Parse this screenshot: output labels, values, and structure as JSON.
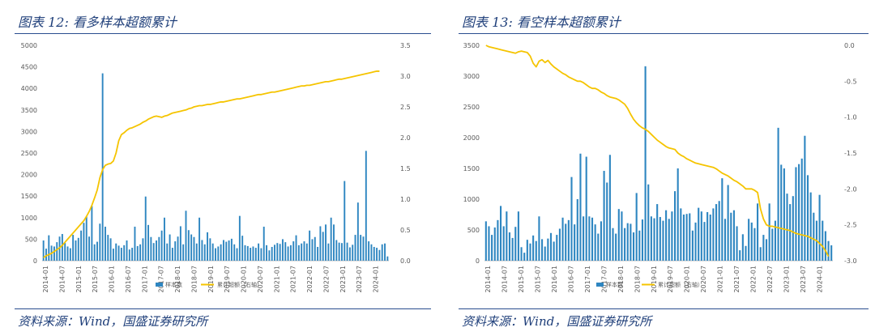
{
  "figures": [
    {
      "title": "图表 12:  看多样本超额累计",
      "source": "资料来源：Wind，国盛证券研究所"
    },
    {
      "title": "图表 13:  看空样本超额累计",
      "source": "资料来源：Wind，国盛证券研究所"
    }
  ],
  "colors": {
    "bar": "#2e86c1",
    "line": "#f5c400",
    "title": "#1f3f7a",
    "rule": "#2a4d8f"
  },
  "chart_data": [
    {
      "type": "bar",
      "title": "",
      "xlabel": "",
      "ylabel": "",
      "x_tick_labels": [
        "2014-01",
        "2014-07",
        "2015-01",
        "2015-07",
        "2016-01",
        "2016-07",
        "2017-01",
        "2017-07",
        "2018-01",
        "2018-07",
        "2019-01",
        "2019-07",
        "2020-01",
        "2020-07",
        "2021-01",
        "2021-07",
        "2022-01",
        "2022-07",
        "2023-01",
        "2023-07",
        "2024-01"
      ],
      "ylim_left": [
        0,
        5000
      ],
      "left_ticks": [
        0,
        500,
        1000,
        1500,
        2000,
        2500,
        3000,
        3500,
        4000,
        4500,
        5000
      ],
      "ylim_right": [
        0.0,
        3.5
      ],
      "right_ticks": [
        "0.0",
        "0.5",
        "1.0",
        "1.5",
        "2.0",
        "2.5",
        "3.0",
        "3.5"
      ],
      "legend_position": "bottom",
      "grid": false,
      "series": [
        {
          "name": "样本数",
          "type": "bar",
          "axis": "left",
          "values": [
            470,
            280,
            590,
            350,
            330,
            430,
            560,
            620,
            410,
            330,
            290,
            600,
            470,
            530,
            700,
            880,
            1030,
            560,
            1270,
            380,
            440,
            860,
            4350,
            790,
            600,
            520,
            280,
            400,
            350,
            300,
            360,
            470,
            260,
            300,
            790,
            340,
            380,
            520,
            1490,
            830,
            550,
            410,
            470,
            550,
            700,
            1000,
            400,
            610,
            300,
            450,
            560,
            800,
            380,
            1160,
            710,
            610,
            550,
            400,
            1000,
            480,
            380,
            660,
            520,
            400,
            290,
            330,
            380,
            480,
            440,
            470,
            510,
            380,
            290,
            1040,
            580,
            360,
            340,
            300,
            330,
            300,
            400,
            290,
            790,
            360,
            240,
            320,
            370,
            410,
            390,
            500,
            430,
            330,
            360,
            450,
            590,
            360,
            400,
            450,
            400,
            700,
            500,
            550,
            320,
            800,
            670,
            840,
            400,
            1000,
            840,
            480,
            420,
            410,
            1850,
            420,
            310,
            370,
            600,
            1350,
            600,
            560,
            2550,
            450,
            380,
            320,
            300,
            250,
            380,
            400,
            100
          ]
        },
        {
          "name": "累计超额（右轴）",
          "type": "line",
          "axis": "right",
          "values": [
            0.05,
            0.08,
            0.1,
            0.12,
            0.15,
            0.18,
            0.21,
            0.25,
            0.3,
            0.35,
            0.4,
            0.45,
            0.5,
            0.55,
            0.6,
            0.65,
            0.72,
            0.8,
            0.9,
            1.02,
            1.15,
            1.35,
            1.48,
            1.55,
            1.57,
            1.58,
            1.62,
            1.75,
            1.95,
            2.05,
            2.08,
            2.12,
            2.15,
            2.16,
            2.18,
            2.2,
            2.22,
            2.25,
            2.27,
            2.3,
            2.32,
            2.34,
            2.35,
            2.34,
            2.33,
            2.35,
            2.36,
            2.38,
            2.4,
            2.41,
            2.42,
            2.43,
            2.44,
            2.45,
            2.47,
            2.48,
            2.5,
            2.51,
            2.52,
            2.52,
            2.53,
            2.54,
            2.54,
            2.55,
            2.56,
            2.57,
            2.58,
            2.58,
            2.59,
            2.6,
            2.61,
            2.62,
            2.63,
            2.63,
            2.64,
            2.65,
            2.66,
            2.67,
            2.68,
            2.69,
            2.7,
            2.7,
            2.71,
            2.72,
            2.73,
            2.74,
            2.74,
            2.75,
            2.76,
            2.77,
            2.78,
            2.79,
            2.8,
            2.81,
            2.82,
            2.83,
            2.84,
            2.84,
            2.85,
            2.85,
            2.86,
            2.87,
            2.88,
            2.89,
            2.9,
            2.91,
            2.91,
            2.92,
            2.93,
            2.94,
            2.95,
            2.95,
            2.96,
            2.97,
            2.98,
            2.99,
            3.0,
            3.01,
            3.02,
            3.03,
            3.04,
            3.05,
            3.06,
            3.07,
            3.08,
            3.08
          ]
        }
      ]
    },
    {
      "type": "bar",
      "title": "",
      "xlabel": "",
      "ylabel": "",
      "x_tick_labels": [
        "2014-01",
        "2014-07",
        "2015-01",
        "2015-07",
        "2016-01",
        "2016-07",
        "2017-01",
        "2017-07",
        "2018-01",
        "2018-07",
        "2019-01",
        "2019-07",
        "2020-01",
        "2020-07",
        "2021-01",
        "2021-07",
        "2022-01",
        "2022-07",
        "2023-01",
        "2023-07",
        "2024-01"
      ],
      "ylim_left": [
        0,
        3500
      ],
      "left_ticks": [
        0,
        500,
        1000,
        1500,
        2000,
        2500,
        3000,
        3500
      ],
      "ylim_right": [
        -3.0,
        0.0
      ],
      "right_ticks": [
        "0.0",
        "-0.5",
        "-1.0",
        "-1.5",
        "-2.0",
        "-2.5",
        "-3.0"
      ],
      "legend_position": "bottom",
      "grid": false,
      "series": [
        {
          "name": "样本数",
          "type": "bar",
          "axis": "left",
          "values": [
            640,
            560,
            420,
            540,
            660,
            890,
            560,
            800,
            460,
            370,
            550,
            800,
            220,
            130,
            340,
            280,
            410,
            320,
            720,
            350,
            230,
            360,
            450,
            310,
            420,
            520,
            700,
            600,
            660,
            1360,
            590,
            1000,
            1740,
            720,
            1690,
            720,
            700,
            590,
            440,
            640,
            1460,
            1270,
            1720,
            530,
            440,
            840,
            800,
            530,
            610,
            600,
            460,
            1100,
            490,
            670,
            3160,
            1240,
            720,
            690,
            920,
            710,
            650,
            820,
            680,
            800,
            1130,
            1500,
            850,
            750,
            760,
            770,
            490,
            620,
            860,
            800,
            630,
            790,
            750,
            850,
            920,
            970,
            1340,
            680,
            1230,
            780,
            820,
            560,
            170,
            430,
            240,
            680,
            620,
            530,
            930,
            220,
            420,
            350,
            930,
            520,
            650,
            2160,
            1560,
            1500,
            1090,
            920,
            1050,
            1520,
            1570,
            1660,
            2030,
            1390,
            1110,
            780,
            650,
            1070,
            650,
            480,
            320,
            250
          ]
        },
        {
          "name": "累计超额（右轴）",
          "type": "line",
          "axis": "right",
          "values": [
            0.0,
            -0.02,
            -0.03,
            -0.04,
            -0.05,
            -0.06,
            -0.07,
            -0.08,
            -0.09,
            -0.1,
            -0.11,
            -0.09,
            -0.08,
            -0.09,
            -0.1,
            -0.15,
            -0.25,
            -0.3,
            -0.22,
            -0.2,
            -0.24,
            -0.21,
            -0.26,
            -0.3,
            -0.33,
            -0.36,
            -0.39,
            -0.41,
            -0.44,
            -0.46,
            -0.48,
            -0.5,
            -0.5,
            -0.52,
            -0.55,
            -0.58,
            -0.6,
            -0.6,
            -0.62,
            -0.65,
            -0.67,
            -0.7,
            -0.72,
            -0.73,
            -0.74,
            -0.76,
            -0.79,
            -0.82,
            -0.88,
            -0.96,
            -1.03,
            -1.08,
            -1.12,
            -1.15,
            -1.17,
            -1.2,
            -1.24,
            -1.28,
            -1.32,
            -1.35,
            -1.38,
            -1.41,
            -1.43,
            -1.44,
            -1.45,
            -1.5,
            -1.53,
            -1.55,
            -1.58,
            -1.6,
            -1.62,
            -1.64,
            -1.65,
            -1.66,
            -1.67,
            -1.68,
            -1.69,
            -1.7,
            -1.72,
            -1.75,
            -1.78,
            -1.8,
            -1.82,
            -1.85,
            -1.88,
            -1.9,
            -1.93,
            -1.96,
            -2.0,
            -2.0,
            -2.0,
            -2.02,
            -2.05,
            -2.28,
            -2.42,
            -2.5,
            -2.52,
            -2.52,
            -2.53,
            -2.54,
            -2.55,
            -2.56,
            -2.57,
            -2.58,
            -2.6,
            -2.62,
            -2.63,
            -2.64,
            -2.65,
            -2.66,
            -2.68,
            -2.7,
            -2.72,
            -2.76,
            -2.8,
            -2.86,
            -2.94
          ]
        }
      ]
    }
  ]
}
